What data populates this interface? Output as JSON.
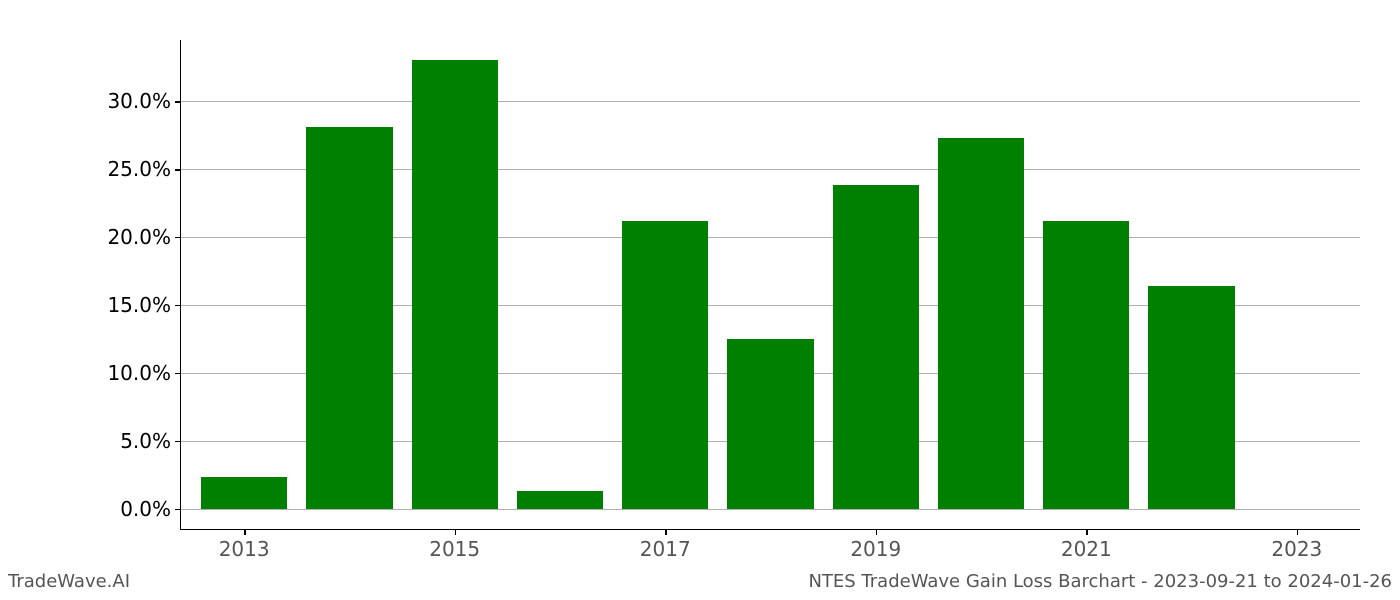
{
  "chart": {
    "type": "bar",
    "background_color": "#ffffff",
    "grid_color": "#b0b0b0",
    "axis_color": "#000000",
    "bar_color": "#008000",
    "font_family": "DejaVu Sans",
    "tick_fontsize": 20,
    "footer_fontsize": 18,
    "y": {
      "min": -1.5,
      "max": 34.5,
      "ticks": [
        0.0,
        5.0,
        10.0,
        15.0,
        20.0,
        25.0,
        30.0
      ],
      "labels": [
        "0.0%",
        "5.0%",
        "10.0%",
        "15.0%",
        "20.0%",
        "25.0%",
        "30.0%"
      ]
    },
    "x": {
      "tick_years": [
        2013,
        2015,
        2017,
        2019,
        2021,
        2023
      ],
      "data_min": 2012.4,
      "data_max": 2023.6
    },
    "bars": [
      {
        "year": 2013,
        "value": 2.3
      },
      {
        "year": 2014,
        "value": 28.1
      },
      {
        "year": 2015,
        "value": 33.0
      },
      {
        "year": 2016,
        "value": 1.3
      },
      {
        "year": 2017,
        "value": 21.2
      },
      {
        "year": 2018,
        "value": 12.5
      },
      {
        "year": 2019,
        "value": 23.8
      },
      {
        "year": 2020,
        "value": 27.3
      },
      {
        "year": 2021,
        "value": 21.2
      },
      {
        "year": 2022,
        "value": 16.4
      },
      {
        "year": 2023,
        "value": 0.0
      }
    ],
    "bar_width_years": 0.82
  },
  "footer": {
    "left": "TradeWave.AI",
    "right": "NTES TradeWave Gain Loss Barchart - 2023-09-21 to 2024-01-26"
  }
}
